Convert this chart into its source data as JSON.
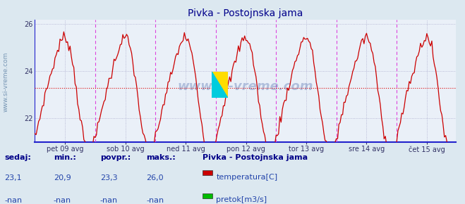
{
  "title": "Pivka - Postojnska jama",
  "bg_color": "#dce8f0",
  "plot_bg_color": "#eaf0f8",
  "line_color": "#cc0000",
  "grid_color": "#aaaacc",
  "vline_color": "#dd44dd",
  "avg_line_color": "#dd0000",
  "bottom_line_color": "#2222cc",
  "left_spine_color": "#2222cc",
  "ylim": [
    21.0,
    26.2
  ],
  "yticks": [
    22,
    24,
    26
  ],
  "title_color": "#00008b",
  "tick_labels": [
    "pet 09 avg",
    "sob 10 avg",
    "ned 11 avg",
    "pon 12 avg",
    "tor 13 avg",
    "sre 14 avg",
    "čet 15 avg"
  ],
  "num_points": 336,
  "avg_value": 23.3,
  "min_value": 20.9,
  "max_value": 26.0,
  "current_value": 23.1,
  "watermark": "www.si-vreme.com",
  "legend_title": "Pivka - Postojnska jama",
  "legend_items": [
    {
      "label": "temperatura[C]",
      "color": "#cc0000"
    },
    {
      "label": "pretok[m3/s]",
      "color": "#00bb00"
    }
  ],
  "footer_labels": [
    "sedaj:",
    "min.:",
    "povpr.:",
    "maks.:"
  ],
  "footer_values": [
    "23,1",
    "20,9",
    "23,3",
    "26,0"
  ],
  "footer_nan": [
    "-nan",
    "-nan",
    "-nan",
    "-nan"
  ]
}
